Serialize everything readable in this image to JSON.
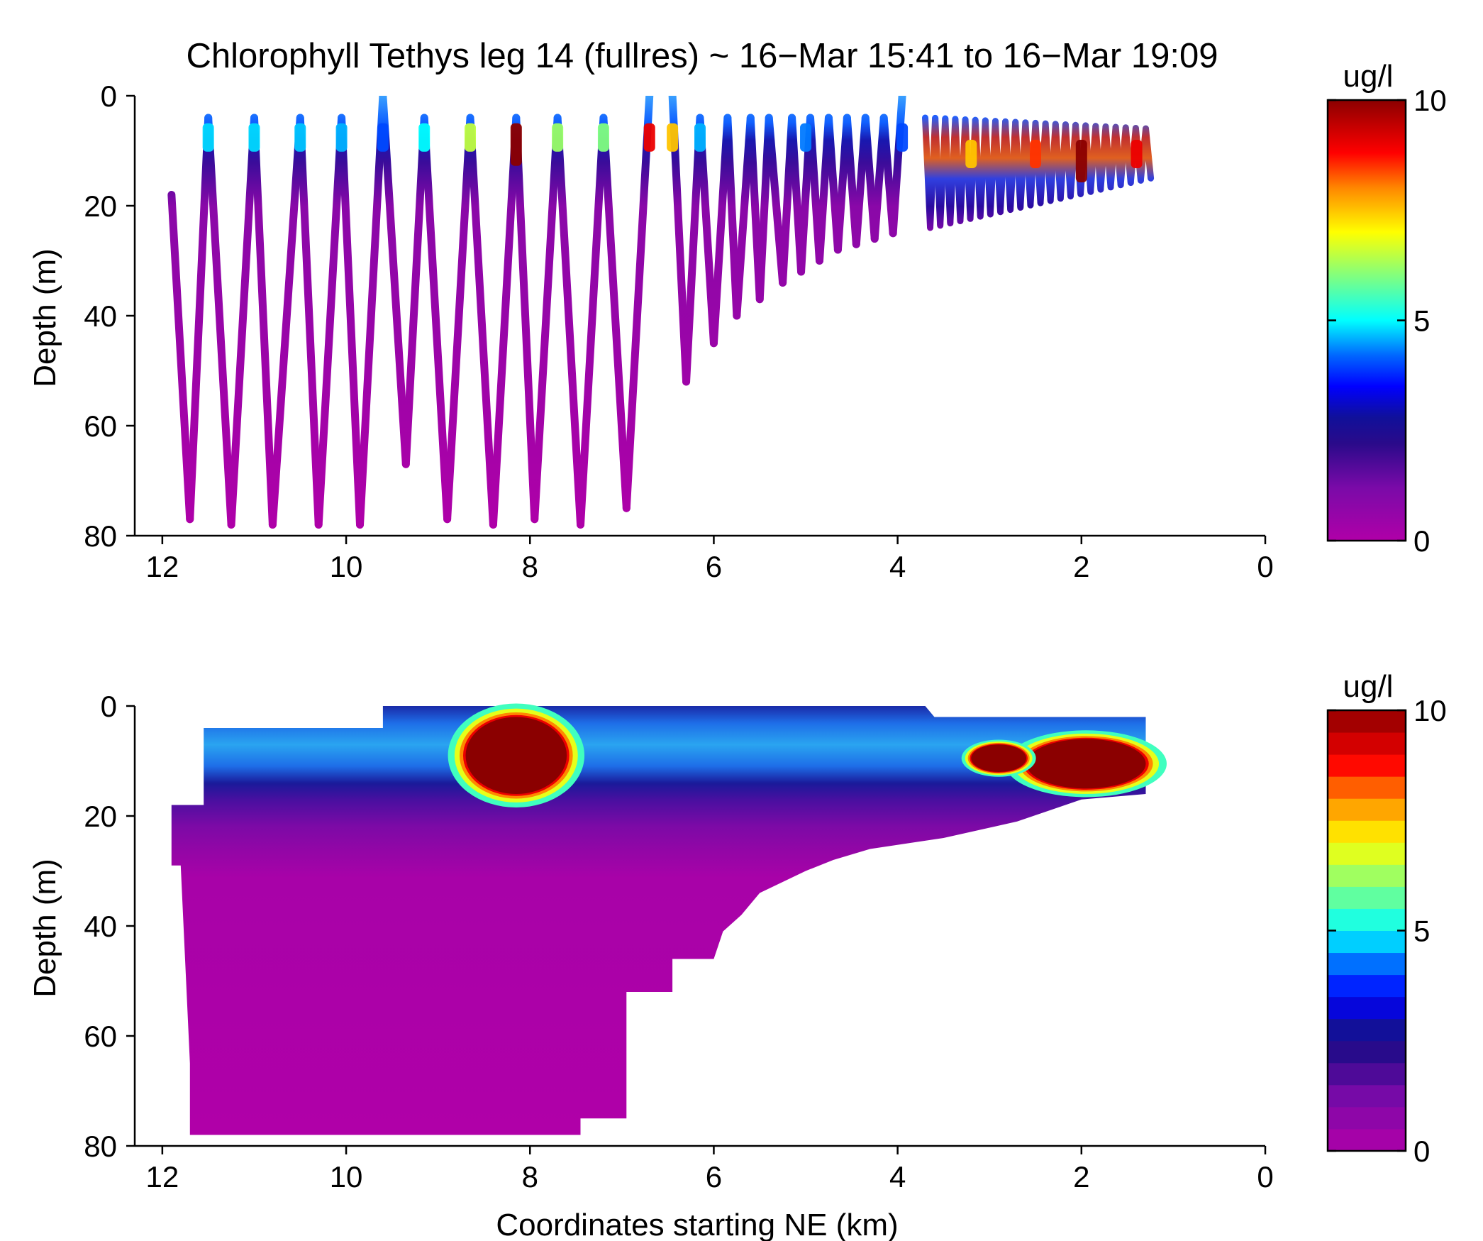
{
  "chart_data": [
    {
      "type": "scatter",
      "title": "Chlorophyll Tethys leg 14 (fullres) ~ 16−Mar 15:41 to 16−Mar 19:09",
      "ylabel": "Depth (m)",
      "xlabel": "",
      "xlim": [
        12.3,
        0
      ],
      "ylim": [
        0,
        80
      ],
      "x_ticks": [
        "12",
        "10",
        "8",
        "6",
        "4",
        "2",
        "0"
      ],
      "y_ticks": [
        "0",
        "20",
        "40",
        "60",
        "80"
      ],
      "colorbar": {
        "unit": "ug/l",
        "ticks": [
          "10",
          "5",
          "0"
        ],
        "range": [
          0,
          10
        ],
        "colormap": "jet-with-magenta-low"
      },
      "yo_path_km_depth": [
        [
          11.9,
          18
        ],
        [
          11.7,
          77
        ],
        [
          11.5,
          4
        ],
        [
          11.25,
          78
        ],
        [
          11.0,
          4
        ],
        [
          10.8,
          78
        ],
        [
          10.5,
          4
        ],
        [
          10.3,
          78
        ],
        [
          10.05,
          4
        ],
        [
          9.85,
          78
        ],
        [
          9.6,
          0
        ],
        [
          9.35,
          67
        ],
        [
          9.15,
          4
        ],
        [
          8.9,
          77
        ],
        [
          8.65,
          4
        ],
        [
          8.4,
          78
        ],
        [
          8.15,
          4
        ],
        [
          7.95,
          77
        ],
        [
          7.7,
          4
        ],
        [
          7.45,
          78
        ],
        [
          7.2,
          4
        ],
        [
          6.95,
          75
        ],
        [
          6.7,
          0
        ],
        [
          6.45,
          0
        ],
        [
          6.3,
          52
        ],
        [
          6.15,
          4
        ],
        [
          6.0,
          45
        ],
        [
          5.85,
          4
        ],
        [
          5.75,
          40
        ],
        [
          5.6,
          4
        ],
        [
          5.5,
          37
        ],
        [
          5.4,
          4
        ],
        [
          5.25,
          34
        ],
        [
          5.15,
          4
        ],
        [
          5.05,
          32
        ],
        [
          4.95,
          4
        ],
        [
          4.85,
          30
        ],
        [
          4.75,
          4
        ],
        [
          4.65,
          28
        ],
        [
          4.55,
          4
        ],
        [
          4.45,
          27
        ],
        [
          4.35,
          4
        ],
        [
          4.25,
          26
        ],
        [
          4.15,
          4
        ],
        [
          4.05,
          25
        ],
        [
          3.95,
          0
        ]
      ],
      "nearshore_yo_region": {
        "x_km": [
          3.7,
          1.3
        ],
        "top_depth": [
          0,
          2
        ],
        "bottom_depth": [
          24,
          15
        ]
      },
      "near_surface_chl_along_km": [
        {
          "x_km": 11.5,
          "chl": 4.8
        },
        {
          "x_km": 11.0,
          "chl": 4.8
        },
        {
          "x_km": 10.5,
          "chl": 4.7
        },
        {
          "x_km": 10.05,
          "chl": 4.6
        },
        {
          "x_km": 9.6,
          "chl": 4.0
        },
        {
          "x_km": 9.15,
          "chl": 5.0
        },
        {
          "x_km": 8.65,
          "chl": 6.5
        },
        {
          "x_km": 8.15,
          "chl": 10
        },
        {
          "x_km": 7.7,
          "chl": 6.2
        },
        {
          "x_km": 7.2,
          "chl": 6.0
        },
        {
          "x_km": 6.7,
          "chl": 9.0
        },
        {
          "x_km": 6.45,
          "chl": 7.5
        },
        {
          "x_km": 6.15,
          "chl": 4.6
        },
        {
          "x_km": 5.0,
          "chl": 4.3
        },
        {
          "x_km": 3.95,
          "chl": 4.0
        },
        {
          "x_km": 3.2,
          "chl": 7.5
        },
        {
          "x_km": 2.5,
          "chl": 8.5
        },
        {
          "x_km": 2.0,
          "chl": 10
        },
        {
          "x_km": 1.4,
          "chl": 9.0
        }
      ]
    },
    {
      "type": "heatmap",
      "title": "",
      "xlabel": "Coordinates starting NE (km)",
      "ylabel": "Depth (m)",
      "xlim": [
        12.3,
        0
      ],
      "ylim": [
        0,
        80
      ],
      "x_ticks": [
        "12",
        "10",
        "8",
        "6",
        "4",
        "2",
        "0"
      ],
      "y_ticks": [
        "0",
        "20",
        "40",
        "60",
        "80"
      ],
      "colorbar": {
        "unit": "ug/l",
        "ticks": [
          "10",
          "5",
          "0"
        ],
        "range": [
          0,
          10
        ],
        "levels": 20,
        "colormap": "jet-with-magenta-low"
      },
      "data_coverage_outline_km_depth": [
        [
          11.9,
          18
        ],
        [
          11.55,
          18
        ],
        [
          11.55,
          4
        ],
        [
          9.6,
          4
        ],
        [
          9.6,
          0
        ],
        [
          3.7,
          0
        ],
        [
          3.6,
          2
        ],
        [
          1.3,
          2
        ],
        [
          1.3,
          16
        ],
        [
          2.0,
          17
        ],
        [
          2.7,
          21
        ],
        [
          3.5,
          24
        ],
        [
          4.3,
          26
        ],
        [
          4.7,
          28
        ],
        [
          5.0,
          30
        ],
        [
          5.5,
          34
        ],
        [
          5.7,
          38
        ],
        [
          5.9,
          41
        ],
        [
          6.0,
          46
        ],
        [
          6.45,
          46
        ],
        [
          6.45,
          52
        ],
        [
          6.95,
          52
        ],
        [
          6.95,
          75
        ],
        [
          7.45,
          75
        ],
        [
          7.45,
          78
        ],
        [
          11.7,
          78
        ],
        [
          11.7,
          65
        ],
        [
          11.8,
          29
        ],
        [
          11.9,
          29
        ]
      ],
      "surface_chl_max_patches": [
        {
          "x_km": [
            8.7,
            7.6
          ],
          "depth": [
            2,
            16
          ],
          "chl": 10
        },
        {
          "x_km": [
            2.6,
            1.3
          ],
          "depth": [
            6,
            15
          ],
          "chl": 10
        },
        {
          "x_km": [
            3.2,
            2.6
          ],
          "depth": [
            7,
            12
          ],
          "chl": 10
        }
      ]
    }
  ]
}
